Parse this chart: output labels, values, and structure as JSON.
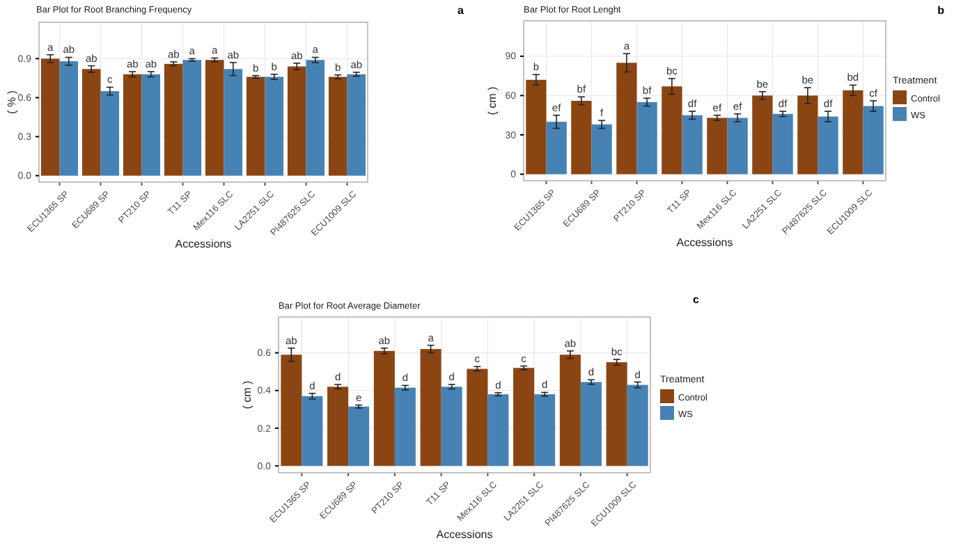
{
  "chart_data": [
    {
      "type": "bar",
      "title": "Bar Plot for Root Branching Frequency",
      "xlabel": "Accessions",
      "ylabel": "( % )",
      "annotations": [
        "a"
      ],
      "categories": [
        "ECU1365 SP",
        "ECU689 SP",
        "PT210 SP",
        "T11 SP",
        "Mex116 SLC",
        "LA2251 SLC",
        "PI487625 SLC",
        "ECU1009 SLC"
      ],
      "series": [
        {
          "color": "#8b4513",
          "values": [
            0.9,
            0.82,
            0.78,
            0.86,
            0.89,
            0.76,
            0.84,
            0.76
          ],
          "errors": [
            0.03,
            0.025,
            0.02,
            0.015,
            0.015,
            0.01,
            0.025,
            0.015
          ],
          "value_labels": [
            "a",
            "ab",
            "ab",
            "ab",
            "a",
            "b",
            "ab",
            "b"
          ]
        },
        {
          "color": "#4682b4",
          "values": [
            0.88,
            0.65,
            0.78,
            0.89,
            0.82,
            0.76,
            0.89,
            0.78
          ],
          "errors": [
            0.03,
            0.03,
            0.02,
            0.01,
            0.05,
            0.02,
            0.02,
            0.015
          ],
          "value_labels": [
            "ab",
            "c",
            "ab",
            "a",
            "ab",
            "b",
            "a",
            "ab"
          ]
        }
      ],
      "ylim": [
        -0.05,
        1.18
      ],
      "yticks": [
        {
          "value": 0,
          "label": "0.0"
        },
        0.3,
        0.6,
        0.9
      ],
      "grid": true,
      "legend": false
    },
    {
      "type": "bar",
      "title": "Bar Plot for Root Lenght",
      "xlabel": "Accessions",
      "ylabel": "( cm )",
      "legend_title": "Treatment",
      "annotations": [
        "b"
      ],
      "categories": [
        "ECU1365 SP",
        "ECU689 SP",
        "PT210 SP",
        "T11 SP",
        "Mex116 SLC",
        "LA2251 SLC",
        "PI487625 SLC",
        "ECU1009 SLC"
      ],
      "series": [
        {
          "name": "Control",
          "color": "#8b4513",
          "values": [
            72,
            56,
            85,
            67,
            43,
            60,
            60,
            64
          ],
          "errors": [
            4,
            3,
            7,
            6,
            2,
            3,
            6,
            4
          ],
          "value_labels": [
            "b",
            "bf",
            "a",
            "bc",
            "ef",
            "be",
            "be",
            "bd"
          ]
        },
        {
          "name": "WS",
          "color": "#4682b4",
          "values": [
            40,
            38,
            55,
            45,
            43,
            46,
            44,
            52
          ],
          "errors": [
            5,
            3,
            3,
            3,
            3,
            2,
            4,
            4
          ],
          "value_labels": [
            "ef",
            "f",
            "bf",
            "df",
            "ef",
            "df",
            "df",
            "cf"
          ]
        }
      ],
      "ylim": [
        -5,
        117
      ],
      "yticks": [
        0,
        30,
        60,
        90
      ],
      "grid": true,
      "legend": "right"
    },
    {
      "type": "bar",
      "title": "Bar Plot for Root Average Diameter",
      "xlabel": "Accessions",
      "ylabel": "( cm )",
      "legend_title": "Treatment",
      "annotations": [
        "c"
      ],
      "categories": [
        "ECU1365 SP",
        "ECU689 SP",
        "PT210 SP",
        "T11 SP",
        "Mex116 SLC",
        "LA2251 SLC",
        "PI487625 SLC",
        "ECU1009 SLC"
      ],
      "series": [
        {
          "name": "Control",
          "color": "#8b4513",
          "values": [
            0.59,
            0.42,
            0.61,
            0.62,
            0.515,
            0.52,
            0.59,
            0.55
          ],
          "errors": [
            0.035,
            0.012,
            0.015,
            0.02,
            0.012,
            0.01,
            0.02,
            0.015
          ],
          "value_labels": [
            "ab",
            "d",
            "ab",
            "a",
            "c",
            "c",
            "ab",
            "bc"
          ]
        },
        {
          "name": "WS",
          "color": "#4682b4",
          "values": [
            0.37,
            0.315,
            0.415,
            0.42,
            0.38,
            0.38,
            0.445,
            0.43
          ],
          "errors": [
            0.015,
            0.008,
            0.012,
            0.012,
            0.008,
            0.01,
            0.012,
            0.015
          ],
          "value_labels": [
            "d",
            "e",
            "d",
            "d",
            "d",
            "d",
            "d",
            "d"
          ]
        }
      ],
      "ylim": [
        -0.036,
        0.79
      ],
      "yticks": [
        {
          "value": 0,
          "label": "0.0"
        },
        0.2,
        0.4,
        0.6
      ],
      "grid": true,
      "legend": "right"
    }
  ]
}
